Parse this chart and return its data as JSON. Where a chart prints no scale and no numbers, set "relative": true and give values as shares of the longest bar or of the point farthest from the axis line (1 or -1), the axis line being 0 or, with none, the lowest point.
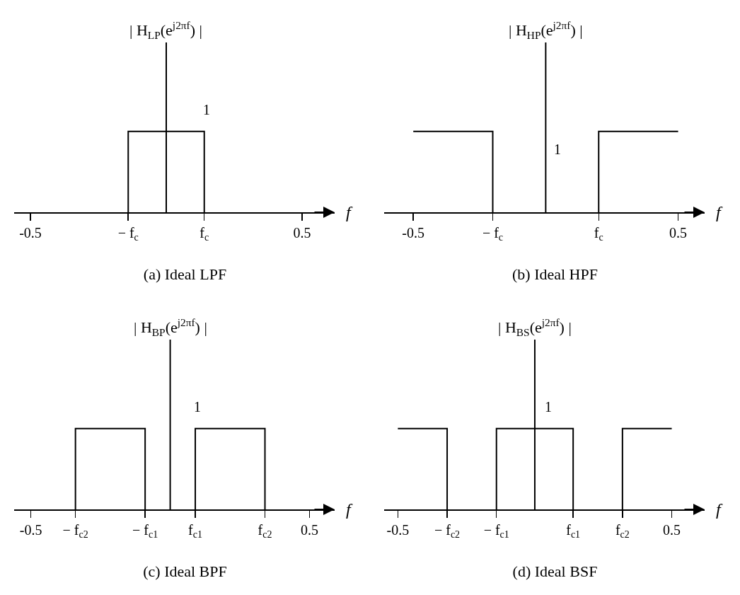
{
  "chart_data": [
    {
      "type": "line",
      "title": "(a) Ideal LPF",
      "ylabel": "| H$_{LP}$(e$^{j2πf}$) |",
      "xlabel": "f",
      "relative": true,
      "grid": false,
      "marker": "none",
      "line_style": "solid",
      "xlim": [
        -0.56,
        0.62
      ],
      "xticks": [
        {
          "value": -0.5,
          "label": "-0.5"
        },
        {
          "value": -0.14,
          "label": "− f$_{c}$"
        },
        {
          "value": 0.14,
          "label": "f$_{c}$"
        },
        {
          "value": 0.5,
          "label": "0.5"
        }
      ],
      "series": [
        {
          "color": "#000000",
          "x": [
            -0.14,
            -0.14,
            0.14,
            0.14
          ],
          "values": [
            0,
            1,
            1,
            0
          ]
        }
      ],
      "annotations": [
        {
          "text": "1",
          "x": 0.13,
          "y": 1
        }
      ]
    },
    {
      "type": "line",
      "title": "(b) Ideal HPF",
      "ylabel": "| H$_{HP}$(e$^{j2πf}$) |",
      "xlabel": "f",
      "relative": true,
      "grid": false,
      "marker": "none",
      "line_style": "solid",
      "xlim": [
        -0.61,
        0.6
      ],
      "xticks": [
        {
          "value": -0.5,
          "label": "-0.5"
        },
        {
          "value": -0.2,
          "label": "− f$_{c}$"
        },
        {
          "value": 0.2,
          "label": "f$_{c}$"
        },
        {
          "value": 0.5,
          "label": "0.5"
        }
      ],
      "series": [
        {
          "color": "#000000",
          "x": [
            -0.5,
            -0.2,
            -0.2,
            null,
            0.2,
            0.2,
            0.5
          ],
          "values": [
            1,
            1,
            0,
            null,
            0,
            1,
            1
          ]
        }
      ],
      "annotations": [
        "1"
      ]
    },
    {
      "type": "line",
      "title": "(c) Ideal BPF",
      "ylabel": "| H$_{BP}$(e$^{j2πf}$) |",
      "xlabel": "f",
      "relative": true,
      "grid": false,
      "marker": "none",
      "line_style": "solid",
      "xlim": [
        -0.56,
        0.59
      ],
      "xticks": [
        {
          "value": -0.5,
          "label": "-0.5"
        },
        {
          "value": -0.34,
          "label": "− f$_{c2}$"
        },
        {
          "value": -0.09,
          "label": "− f$_{c1}$"
        },
        {
          "value": 0.09,
          "label": "f$_{c1}$"
        },
        {
          "value": 0.34,
          "label": "f$_{c2}$"
        },
        {
          "value": 0.5,
          "label": "0.5"
        }
      ],
      "series": [
        {
          "color": "#000000",
          "x": [
            -0.34,
            -0.34,
            -0.09,
            -0.09,
            null,
            0.09,
            0.09,
            0.34,
            0.34
          ],
          "values": [
            0,
            1,
            1,
            0,
            null,
            0,
            1,
            1,
            0
          ]
        }
      ],
      "annotations": [
        {
          "text": "1",
          "x": 0.08,
          "y": 1
        }
      ]
    },
    {
      "type": "line",
      "title": "(d) Ideal BSF",
      "ylabel": "| H$_{BS}$(e$^{j2πf}$) |",
      "xlabel": "f",
      "relative": true,
      "grid": false,
      "marker": "none",
      "line_style": "solid",
      "xlim": [
        -0.55,
        0.62
      ],
      "xticks": [
        {
          "value": -0.5,
          "label": "-0.5"
        },
        {
          "value": -0.32,
          "label": "− f$_{c2}$"
        },
        {
          "value": -0.14,
          "label": "− f$_{c1}$"
        },
        {
          "value": 0.14,
          "label": "f$_{c1}$"
        },
        {
          "value": 0.32,
          "label": "f$_{c2}$"
        },
        {
          "value": 0.5,
          "label": "0.5"
        }
      ],
      "series": [
        {
          "color": "#000000",
          "x": [
            -0.5,
            -0.32,
            -0.32,
            null,
            -0.14,
            -0.14,
            0.14,
            0.14,
            null,
            0.32,
            0.32,
            0.5
          ],
          "values": [
            1,
            1,
            0,
            null,
            0,
            1,
            1,
            0,
            null,
            0,
            1,
            1
          ]
        }
      ],
      "annotations": [
        {
          "text": "1",
          "x": 0.03,
          "y": 1
        }
      ]
    }
  ]
}
